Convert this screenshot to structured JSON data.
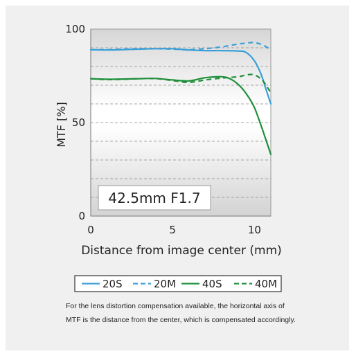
{
  "chart_data": {
    "type": "line",
    "annotation": "42.5mm F1.7",
    "xlabel": "Distance from image center (mm)",
    "ylabel": "MTF [%]",
    "xlim": [
      0,
      11
    ],
    "ylim": [
      0,
      100
    ],
    "x_ticks": [
      "0",
      "5",
      "10"
    ],
    "y_ticks": [
      "0",
      "50",
      "100"
    ],
    "grid": "dashed horizontal every 10%",
    "legend_placement": "bottom",
    "series": [
      {
        "name": "20S",
        "style": "solid",
        "color": "#3a9fd8",
        "x": [
          0,
          1,
          2,
          3,
          4,
          5,
          6,
          7,
          8,
          9,
          9.5,
          10,
          10.4,
          10.7,
          11
        ],
        "y": [
          89,
          88.8,
          89,
          89.3,
          89.5,
          89.5,
          88.8,
          88.5,
          88.5,
          88.3,
          87.5,
          83,
          76,
          68,
          60
        ]
      },
      {
        "name": "20M",
        "style": "dashed",
        "color": "#3a9fd8",
        "x": [
          0,
          1,
          2,
          3,
          4,
          5,
          6,
          7,
          8,
          9,
          9.5,
          10,
          10.5,
          11
        ],
        "y": [
          89,
          89,
          89.3,
          89.5,
          89.5,
          89.3,
          89,
          89.5,
          90.5,
          92,
          92.5,
          92.8,
          91.5,
          89
        ]
      },
      {
        "name": "40S",
        "style": "solid",
        "color": "#1f8f3a",
        "x": [
          0,
          1,
          2,
          3,
          4,
          5,
          6,
          7,
          8,
          8.5,
          9,
          9.5,
          10,
          10.5,
          11
        ],
        "y": [
          73.5,
          73.2,
          73.3,
          73.5,
          73.6,
          72.8,
          72.3,
          74,
          74.5,
          73.5,
          70.5,
          65.5,
          58,
          46,
          33
        ]
      },
      {
        "name": "40M",
        "style": "dashed",
        "color": "#1f8f3a",
        "x": [
          0,
          1,
          2,
          3,
          4,
          5,
          6,
          7,
          8,
          9,
          9.5,
          10,
          10.5,
          11
        ],
        "y": [
          73.5,
          73,
          73.2,
          73.5,
          73.5,
          72.5,
          71.5,
          72.8,
          73.8,
          74.5,
          75.5,
          75.5,
          72.5,
          66
        ]
      }
    ]
  },
  "note": {
    "line1": "For the lens distortion compensation available, the horizontal axis of",
    "line2": "MTF is the distance from the center, which is compensated accordingly."
  }
}
